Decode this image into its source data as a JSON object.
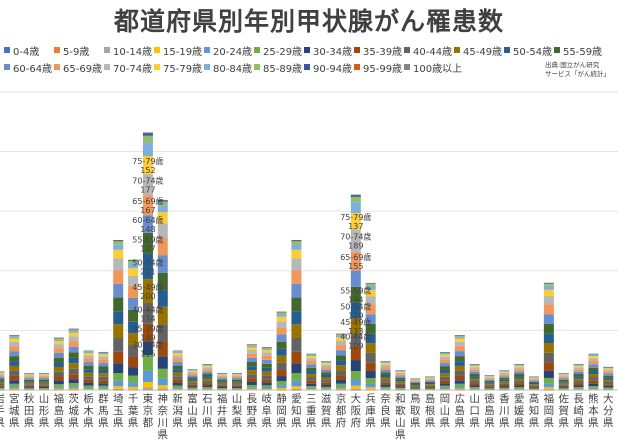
{
  "title": "都道府県別年別甲状腺がん罹患数",
  "source_note": [
    "出典:国立がん研究",
    "サービス「がん統計」"
  ],
  "colors": {
    "0-4歳": "#4472c4",
    "5-9歳": "#ed7d31",
    "10-14歳": "#a5a5a5",
    "15-19歳": "#ffc000",
    "20-24歳": "#5b9bd5",
    "25-29歳": "#70ad47",
    "30-34歳": "#264478",
    "35-39歳": "#9e480e",
    "40-44歳": "#636363",
    "45-49歳": "#997300",
    "50-54歳": "#255e91",
    "55-59歳": "#43682b",
    "60-64歳": "#698ed0",
    "65-69歳": "#f1975a",
    "70-74歳": "#b7b7b7",
    "75-79歳": "#ffcd33",
    "80-84歳": "#7cafdd",
    "85-89歳": "#8cc168",
    "90-94歳": "#335aa1",
    "95-99歳": "#d26012",
    "100歳以上": "#848484"
  },
  "chart_data": {
    "type": "bar",
    "stacked": true,
    "title": "都道府県別年別甲状腺がん罹患数",
    "legend_position": "top",
    "grid": true,
    "ylim": [
      0,
      2700
    ],
    "categories": [
      "岩手県",
      "宮城県",
      "秋田県",
      "山形県",
      "福島県",
      "茨城県",
      "栃木県",
      "群馬県",
      "埼玉県",
      "千葉県",
      "東京都",
      "神奈川県",
      "新潟県",
      "富山県",
      "石川県",
      "福井県",
      "山梨県",
      "長野県",
      "岐阜県",
      "静岡県",
      "愛知県",
      "三重県",
      "滋賀県",
      "京都府",
      "大阪府",
      "兵庫県",
      "奈良県",
      "和歌山県",
      "鳥取県",
      "島根県",
      "岡山県",
      "広島県",
      "山口県",
      "徳島県",
      "香川県",
      "愛媛県",
      "高知県",
      "福岡県",
      "佐賀県",
      "長崎県",
      "熊本県",
      "大分県"
    ],
    "series": [
      {
        "name": "0-4歳",
        "values": [
          0,
          0,
          0,
          0,
          0,
          0,
          0,
          0,
          1,
          0,
          2,
          1,
          0,
          0,
          0,
          0,
          0,
          0,
          0,
          0,
          1,
          0,
          0,
          0,
          1,
          0,
          0,
          0,
          0,
          0,
          0,
          0,
          0,
          0,
          0,
          0,
          0,
          1,
          0,
          0,
          0,
          0
        ]
      },
      {
        "name": "5-9歳",
        "values": [
          0,
          1,
          0,
          0,
          1,
          1,
          0,
          0,
          2,
          1,
          4,
          2,
          0,
          0,
          0,
          0,
          0,
          0,
          0,
          1,
          2,
          0,
          0,
          1,
          2,
          1,
          0,
          0,
          0,
          0,
          0,
          1,
          0,
          0,
          0,
          0,
          0,
          1,
          0,
          0,
          0,
          0
        ]
      },
      {
        "name": "10-14歳",
        "values": [
          1,
          3,
          1,
          1,
          3,
          3,
          2,
          2,
          7,
          6,
          15,
          9,
          2,
          1,
          1,
          1,
          1,
          2,
          2,
          4,
          7,
          2,
          1,
          3,
          8,
          5,
          1,
          1,
          1,
          1,
          2,
          3,
          1,
          1,
          1,
          1,
          1,
          5,
          1,
          1,
          2,
          1
        ]
      },
      {
        "name": "15-19歳",
        "values": [
          3,
          8,
          2,
          3,
          8,
          9,
          6,
          6,
          22,
          19,
          46,
          28,
          6,
          3,
          4,
          3,
          3,
          7,
          6,
          12,
          22,
          5,
          4,
          8,
          25,
          16,
          4,
          3,
          2,
          2,
          6,
          8,
          4,
          2,
          3,
          4,
          2,
          16,
          2,
          4,
          5,
          3
        ]
      },
      {
        "name": "20-24歳",
        "values": [
          6,
          17,
          5,
          5,
          16,
          19,
          12,
          12,
          46,
          40,
          95,
          58,
          12,
          6,
          8,
          5,
          5,
          14,
          13,
          24,
          46,
          11,
          9,
          17,
          52,
          33,
          9,
          6,
          3,
          4,
          12,
          17,
          8,
          5,
          6,
          8,
          4,
          33,
          5,
          8,
          11,
          7
        ]
      },
      {
        "name": "25-29歳",
        "values": [
          8,
          23,
          7,
          7,
          22,
          26,
          17,
          16,
          63,
          55,
          130,
          80,
          17,
          9,
          11,
          7,
          7,
          19,
          18,
          33,
          63,
          15,
          12,
          24,
          71,
          45,
          12,
          8,
          5,
          6,
          16,
          23,
          11,
          6,
          8,
          11,
          6,
          45,
          7,
          11,
          15,
          10
        ]
      },
      {
        "name": "30-34歳",
        "values": [
          10,
          30,
          9,
          9,
          29,
          33,
          22,
          21,
          82,
          71,
          115,
          104,
          22,
          11,
          14,
          9,
          9,
          25,
          23,
          43,
          82,
          20,
          16,
          31,
          92,
          59,
          16,
          11,
          6,
          7,
          21,
          30,
          14,
          8,
          11,
          14,
          7,
          59,
          9,
          14,
          20,
          13
        ]
      },
      {
        "name": "35-39歳",
        "values": [
          12,
          36,
          11,
          11,
          34,
          40,
          26,
          25,
          98,
          85,
          149,
          124,
          26,
          14,
          17,
          11,
          11,
          30,
          28,
          51,
          98,
          24,
          19,
          37,
          110,
          70,
          19,
          13,
          7,
          9,
          25,
          36,
          17,
          10,
          13,
          17,
          9,
          70,
          11,
          17,
          24,
          15
        ]
      },
      {
        "name": "40-44歳",
        "values": [
          14,
          42,
          13,
          13,
          40,
          47,
          30,
          29,
          115,
          100,
          174,
          146,
          30,
          16,
          20,
          13,
          13,
          35,
          33,
          60,
          115,
          28,
          22,
          43,
          109,
          82,
          22,
          15,
          9,
          10,
          29,
          42,
          20,
          11,
          15,
          20,
          10,
          82,
          13,
          20,
          28,
          18
        ]
      },
      {
        "name": "45-49歳",
        "values": [
          14,
          42,
          13,
          13,
          40,
          47,
          30,
          29,
          115,
          100,
          200,
          146,
          30,
          16,
          20,
          13,
          13,
          35,
          33,
          60,
          115,
          28,
          22,
          43,
          133,
          82,
          22,
          15,
          9,
          10,
          29,
          42,
          20,
          11,
          15,
          20,
          10,
          82,
          13,
          20,
          28,
          18
        ]
      },
      {
        "name": "50-54歳",
        "values": [
          13,
          40,
          12,
          12,
          38,
          44,
          29,
          28,
          109,
          95,
          211,
          138,
          29,
          15,
          19,
          12,
          12,
          33,
          31,
          57,
          109,
          26,
          21,
          41,
          129,
          78,
          21,
          14,
          8,
          10,
          28,
          40,
          19,
          11,
          14,
          19,
          10,
          78,
          12,
          19,
          26,
          17
        ]
      },
      {
        "name": "55-59歳",
        "values": [
          14,
          42,
          13,
          13,
          40,
          47,
          30,
          29,
          115,
          100,
          177,
          146,
          30,
          16,
          20,
          13,
          13,
          35,
          33,
          60,
          115,
          28,
          22,
          43,
          134,
          82,
          22,
          15,
          9,
          10,
          29,
          42,
          20,
          11,
          15,
          20,
          10,
          82,
          13,
          20,
          28,
          18
        ]
      },
      {
        "name": "60-64歳",
        "values": [
          14,
          42,
          13,
          13,
          40,
          47,
          30,
          29,
          115,
          100,
          148,
          146,
          30,
          16,
          20,
          13,
          13,
          35,
          33,
          60,
          115,
          28,
          22,
          43,
          137,
          82,
          22,
          15,
          9,
          10,
          29,
          42,
          20,
          11,
          15,
          20,
          10,
          82,
          13,
          20,
          28,
          18
        ]
      },
      {
        "name": "65-69歳",
        "values": [
          14,
          42,
          13,
          13,
          40,
          47,
          30,
          29,
          115,
          100,
          167,
          146,
          30,
          16,
          20,
          13,
          13,
          35,
          33,
          60,
          115,
          28,
          22,
          43,
          155,
          82,
          22,
          15,
          9,
          10,
          29,
          42,
          20,
          11,
          15,
          20,
          10,
          82,
          13,
          20,
          28,
          18
        ]
      },
      {
        "name": "70-74歳",
        "values": [
          12,
          36,
          11,
          11,
          34,
          40,
          26,
          25,
          98,
          85,
          177,
          124,
          26,
          14,
          17,
          11,
          11,
          30,
          28,
          51,
          98,
          24,
          19,
          37,
          189,
          70,
          19,
          13,
          7,
          9,
          25,
          36,
          17,
          10,
          13,
          17,
          9,
          70,
          11,
          17,
          24,
          15
        ]
      },
      {
        "name": "75-79歳",
        "values": [
          9,
          27,
          8,
          8,
          25,
          30,
          19,
          19,
          73,
          64,
          152,
          93,
          19,
          10,
          13,
          8,
          8,
          22,
          21,
          38,
          73,
          18,
          14,
          28,
          137,
          53,
          14,
          10,
          6,
          7,
          18,
          27,
          13,
          7,
          10,
          13,
          7,
          53,
          8,
          13,
          18,
          11
        ]
      },
      {
        "name": "80-84歳",
        "values": [
          6,
          17,
          5,
          5,
          16,
          19,
          12,
          12,
          46,
          40,
          110,
          58,
          12,
          6,
          8,
          5,
          5,
          14,
          13,
          24,
          46,
          11,
          9,
          17,
          90,
          33,
          9,
          6,
          3,
          4,
          12,
          17,
          8,
          5,
          6,
          8,
          4,
          33,
          5,
          8,
          11,
          7
        ]
      },
      {
        "name": "85-89歳",
        "values": [
          3,
          9,
          3,
          3,
          9,
          10,
          7,
          6,
          25,
          21,
          60,
          31,
          7,
          3,
          4,
          3,
          3,
          8,
          7,
          13,
          25,
          6,
          5,
          9,
          45,
          18,
          5,
          3,
          2,
          2,
          6,
          9,
          4,
          2,
          3,
          4,
          2,
          18,
          3,
          4,
          6,
          4
        ]
      },
      {
        "name": "90-94歳",
        "values": [
          1,
          3,
          1,
          1,
          3,
          4,
          2,
          2,
          9,
          8,
          22,
          11,
          2,
          1,
          2,
          1,
          1,
          3,
          3,
          5,
          9,
          2,
          2,
          3,
          15,
          6,
          2,
          1,
          1,
          1,
          2,
          3,
          2,
          1,
          1,
          2,
          1,
          6,
          1,
          2,
          2,
          1
        ]
      },
      {
        "name": "95-99歳",
        "values": [
          0,
          1,
          0,
          0,
          1,
          1,
          0,
          0,
          2,
          2,
          5,
          3,
          0,
          0,
          0,
          0,
          0,
          1,
          1,
          1,
          2,
          0,
          0,
          1,
          4,
          1,
          0,
          0,
          0,
          0,
          0,
          1,
          0,
          0,
          0,
          0,
          0,
          1,
          0,
          0,
          0,
          0
        ]
      },
      {
        "name": "100歳以上",
        "values": [
          0,
          0,
          0,
          0,
          0,
          0,
          0,
          0,
          0,
          0,
          1,
          0,
          0,
          0,
          0,
          0,
          0,
          0,
          0,
          0,
          0,
          0,
          0,
          0,
          1,
          0,
          0,
          0,
          0,
          0,
          0,
          0,
          0,
          0,
          0,
          0,
          0,
          0,
          0,
          0,
          0,
          0
        ]
      }
    ],
    "data_labels": [
      {
        "category": "東京都",
        "series": "75-79歳",
        "text": "75-79歳",
        "value": "152"
      },
      {
        "category": "東京都",
        "series": "70-74歳",
        "text": "70-74歳",
        "value": "177"
      },
      {
        "category": "東京都",
        "series": "65-69歳",
        "text": "65-69歳",
        "value": "167"
      },
      {
        "category": "東京都",
        "series": "60-64歳",
        "text": "60-64歳",
        "value": "148"
      },
      {
        "category": "東京都",
        "series": "55-59歳",
        "text": "55-59歳",
        "value": "177"
      },
      {
        "category": "東京都",
        "series": "50-54歳",
        "text": "50-54歳",
        "value": "211"
      },
      {
        "category": "東京都",
        "series": "45-49歳",
        "text": "45-49歳",
        "value": "200"
      },
      {
        "category": "東京都",
        "series": "40-44歳",
        "text": "40-44歳",
        "value": "174"
      },
      {
        "category": "東京都",
        "series": "35-39歳",
        "text": "35-39歳",
        "value": "149"
      },
      {
        "category": "東京都",
        "series": "30-34歳",
        "text": "30-34歳",
        "value": "115"
      },
      {
        "category": "大阪府",
        "series": "75-79歳",
        "text": "75-79歳",
        "value": "137"
      },
      {
        "category": "大阪府",
        "series": "70-74歳",
        "text": "70-74歳",
        "value": "189"
      },
      {
        "category": "大阪府",
        "series": "65-69歳",
        "text": "65-69歳",
        "value": "155"
      },
      {
        "category": "大阪府",
        "series": "55-59歳",
        "text": "55-59歳",
        "value": "134"
      },
      {
        "category": "大阪府",
        "series": "50-54歳",
        "text": "50-54歳",
        "value": "129"
      },
      {
        "category": "大阪府",
        "series": "45-49歳",
        "text": "45-49歳",
        "value": "133"
      },
      {
        "category": "大阪府",
        "series": "40-44歳",
        "text": "40-44歳",
        "value": "109"
      }
    ]
  }
}
